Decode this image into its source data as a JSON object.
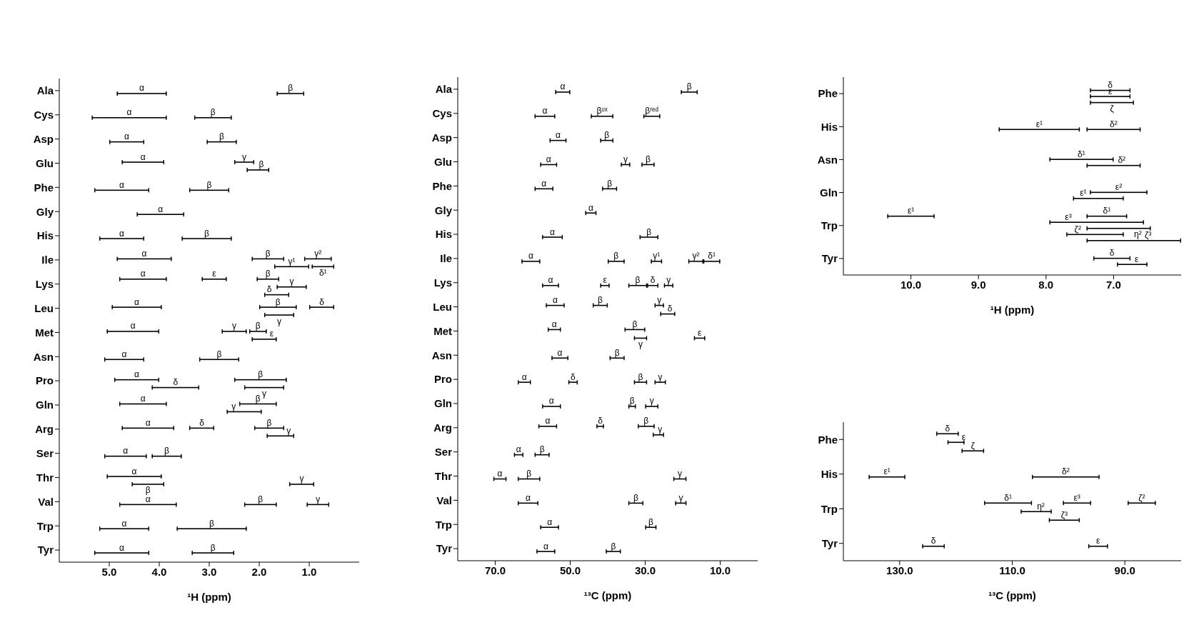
{
  "chart_data": [
    {
      "type": "bar",
      "orientation": "horizontal",
      "xlabel": "¹H (ppm)",
      "categories": [
        "Ala",
        "Cys",
        "Asp",
        "Glu",
        "Phe",
        "Gly",
        "His",
        "Ile",
        "Lys",
        "Leu",
        "Met",
        "Asn",
        "Pro",
        "Gln",
        "Arg",
        "Ser",
        "Thr",
        "Val",
        "Trp",
        "Tyr"
      ],
      "xlim": [
        6,
        0
      ],
      "xticks": [
        {
          "value": 5,
          "label": "5.0"
        },
        {
          "value": 4,
          "label": "4.0"
        },
        {
          "value": 3,
          "label": "3.0"
        },
        {
          "value": 2,
          "label": "2.0"
        },
        {
          "value": 1,
          "label": "1.0"
        }
      ],
      "series": [
        {
          "color": "#000000",
          "base": [
            3.85,
            3.85,
            4.3,
            3.9,
            4.2,
            3.5,
            4.3,
            3.75,
            3.85,
            3.95,
            4.0,
            4.3,
            4.0,
            3.85,
            3.7,
            4.25,
            3.95,
            3.65,
            4.2,
            4.2
          ],
          "values": [
            1.0,
            1.5,
            0.7,
            0.85,
            1.1,
            0.95,
            0.9,
            1.1,
            0.95,
            1.0,
            1.05,
            0.8,
            0.9,
            0.95,
            1.05,
            0.85,
            1.1,
            1.15,
            1.0,
            1.1
          ],
          "value_labels": [
            "α",
            "α",
            "α",
            "α",
            "α",
            "α",
            "α",
            "α",
            "α",
            "α",
            "α",
            "α",
            "α",
            "α",
            "α",
            "α",
            "α",
            "α",
            "α",
            "α"
          ]
        },
        {
          "color": "#000000",
          "base": [
            1.1,
            2.55,
            2.45,
            2.1,
            2.6,
            null,
            2.55,
            1.5,
            2.65,
            0.5,
            2.25,
            2.4,
            1.45,
            1.65,
            2.9,
            3.55,
            3.9,
            1.65,
            2.25,
            2.5
          ],
          "values": [
            0.55,
            0.75,
            0.6,
            0.4,
            0.8,
            null,
            1.0,
            0.65,
            0.5,
            0.5,
            0.5,
            0.8,
            1.05,
            0.75,
            0.5,
            0.6,
            0.65,
            0.65,
            1.4,
            0.85
          ],
          "value_labels": [
            "β",
            "β",
            "β",
            "γ",
            "β",
            null,
            "β",
            "β",
            "ε",
            "δ",
            "γ",
            "β",
            "β",
            "β",
            "δ",
            "β",
            "β",
            "β",
            "β",
            "β"
          ]
        },
        {
          "color": "#000000",
          "base": [
            null,
            null,
            null,
            1.8,
            null,
            null,
            null,
            0.55,
            1.6,
            1.25,
            1.85,
            null,
            3.2,
            1.95,
            1.5,
            null,
            0.9,
            0.6,
            null,
            null
          ],
          "values": [
            null,
            null,
            null,
            0.45,
            null,
            null,
            null,
            0.55,
            0.45,
            0.75,
            0.35,
            null,
            0.95,
            0.7,
            0.6,
            null,
            0.5,
            0.45,
            null,
            null
          ],
          "value_labels": [
            null,
            null,
            null,
            "β",
            null,
            null,
            null,
            "γ²",
            "β",
            "β",
            "β",
            null,
            "δ",
            "γ",
            "β",
            null,
            "γ",
            "γ",
            null,
            null
          ]
        },
        {
          "color": "#000000",
          "base": [
            null,
            null,
            null,
            null,
            null,
            null,
            null,
            1.0,
            1.05,
            1.3,
            1.65,
            null,
            1.5,
            null,
            1.3,
            null,
            null,
            null,
            null,
            null
          ],
          "values": [
            null,
            null,
            null,
            null,
            null,
            null,
            null,
            0.7,
            0.6,
            0.6,
            0.5,
            null,
            0.8,
            null,
            0.55,
            null,
            null,
            null,
            null,
            null
          ],
          "value_labels": [
            null,
            null,
            null,
            null,
            null,
            null,
            null,
            "γ¹",
            "γ",
            "γ",
            "ε",
            null,
            "γ",
            null,
            "γ",
            null,
            null,
            null,
            null,
            null
          ]
        },
        {
          "color": "#000000",
          "base": [
            null,
            null,
            null,
            null,
            null,
            null,
            null,
            0.5,
            1.4,
            null,
            null,
            null,
            null,
            null,
            null,
            null,
            null,
            null,
            null,
            null
          ],
          "values": [
            null,
            null,
            null,
            null,
            null,
            null,
            null,
            0.45,
            0.5,
            null,
            null,
            null,
            null,
            null,
            null,
            null,
            null,
            null,
            null,
            null
          ],
          "value_labels": [
            null,
            null,
            null,
            null,
            null,
            null,
            null,
            "δ¹",
            "δ",
            null,
            null,
            null,
            null,
            null,
            null,
            null,
            null,
            null,
            null,
            null
          ]
        }
      ]
    },
    {
      "type": "bar",
      "orientation": "horizontal",
      "xlabel": "¹³C (ppm)",
      "categories": [
        "Ala",
        "Cys",
        "Asp",
        "Glu",
        "Phe",
        "Gly",
        "His",
        "Ile",
        "Lys",
        "Leu",
        "Met",
        "Asn",
        "Pro",
        "Gln",
        "Arg",
        "Ser",
        "Thr",
        "Val",
        "Trp",
        "Tyr"
      ],
      "xlim": [
        80,
        0
      ],
      "xticks": [
        {
          "value": 70,
          "label": "70.0"
        },
        {
          "value": 50,
          "label": "50.0"
        },
        {
          "value": 30,
          "label": "30.0"
        },
        {
          "value": 10,
          "label": "10.0"
        }
      ],
      "series": [
        {
          "color": "#000000",
          "base": [
            50,
            54,
            51,
            53.5,
            54.5,
            43,
            52,
            58,
            53,
            51.5,
            52.5,
            50.5,
            60.5,
            52.5,
            53.5,
            62.5,
            67,
            58.5,
            53,
            54
          ],
          "values": [
            4,
            5.5,
            4.5,
            4.5,
            5,
            3,
            5.5,
            5,
            4.5,
            5,
            3.5,
            4.5,
            3.5,
            5,
            5,
            2.5,
            3.5,
            5.5,
            5,
            5
          ],
          "value_labels": [
            "α",
            "α",
            "α",
            "α",
            "α",
            "α",
            "α",
            "α",
            "α",
            "α",
            "α",
            "α",
            "α",
            "α",
            "α",
            "α",
            "α",
            "α",
            "α",
            "α"
          ]
        },
        {
          "color": "#000000",
          "base": [
            16,
            38.5,
            38.5,
            34,
            37.5,
            null,
            26.5,
            35.5,
            39.5,
            40,
            30,
            35.5,
            48,
            32.5,
            41,
            55.5,
            58,
            30.5,
            27,
            36.5
          ],
          "values": [
            4.5,
            6,
            3.5,
            2.5,
            4,
            null,
            5,
            4.5,
            2.5,
            4,
            5.5,
            4,
            2.5,
            2,
            2,
            4,
            6,
            4,
            3,
            4
          ],
          "value_labels": [
            "β",
            "βᵒˣ",
            "β",
            "γ",
            "β",
            null,
            "β",
            "β",
            "ε",
            "β",
            "β",
            "β",
            "δ",
            "β",
            "δ",
            "β",
            "β",
            "β",
            "β",
            "β"
          ]
        },
        {
          "color": "#000000",
          "base": [
            null,
            26,
            null,
            27.5,
            null,
            null,
            null,
            25.5,
            29.5,
            25,
            29.5,
            null,
            29.5,
            26.5,
            27.5,
            null,
            19,
            19,
            null,
            null
          ],
          "values": [
            null,
            4.5,
            null,
            3.5,
            null,
            null,
            null,
            3,
            5,
            2.5,
            3.5,
            null,
            3.5,
            3.5,
            4.5,
            null,
            3.5,
            3,
            null,
            null
          ],
          "value_labels": [
            null,
            "βʳᵉᵈ",
            null,
            "β",
            null,
            null,
            null,
            "γ¹",
            "β",
            "γ",
            "γ",
            null,
            "β",
            "γ",
            "β",
            null,
            "γ",
            "γ",
            null,
            null
          ]
        },
        {
          "color": "#000000",
          "base": [
            null,
            null,
            null,
            null,
            null,
            null,
            null,
            14.5,
            26.5,
            22,
            14,
            null,
            24.5,
            null,
            25,
            null,
            null,
            null,
            null,
            null
          ],
          "values": [
            null,
            null,
            null,
            null,
            null,
            null,
            null,
            4,
            3,
            4,
            3,
            null,
            3,
            null,
            3,
            null,
            null,
            null,
            null,
            null
          ],
          "value_labels": [
            null,
            null,
            null,
            null,
            null,
            null,
            null,
            "γ²",
            "δ",
            "δ",
            "ε",
            null,
            "γ",
            null,
            "γ",
            null,
            null,
            null,
            null,
            null
          ]
        },
        {
          "color": "#000000",
          "base": [
            null,
            null,
            null,
            null,
            null,
            null,
            null,
            10,
            22.5,
            null,
            null,
            null,
            null,
            null,
            null,
            null,
            null,
            null,
            null,
            null
          ],
          "values": [
            null,
            null,
            null,
            null,
            null,
            null,
            null,
            4.5,
            2.5,
            null,
            null,
            null,
            null,
            null,
            null,
            null,
            null,
            null,
            null,
            null
          ],
          "value_labels": [
            null,
            null,
            null,
            null,
            null,
            null,
            null,
            "δ¹",
            "γ",
            null,
            null,
            null,
            null,
            null,
            null,
            null,
            null,
            null,
            null,
            null
          ]
        }
      ]
    },
    {
      "type": "bar",
      "orientation": "horizontal",
      "xlabel": "¹H (ppm)",
      "categories": [
        "Phe",
        "His",
        "Asn",
        "Gln",
        "Trp",
        "Tyr"
      ],
      "xlim": [
        11,
        6
      ],
      "xticks": [
        {
          "value": 10,
          "label": "10.0"
        },
        {
          "value": 9,
          "label": "9.0"
        },
        {
          "value": 8,
          "label": "8.0"
        },
        {
          "value": 7,
          "label": "7.0"
        }
      ],
      "series": [
        {
          "color": "#000000",
          "base": [
            6.75,
            7.5,
            7.0,
            6.5,
            9.65,
            6.75
          ],
          "values": [
            0.6,
            1.2,
            0.95,
            0.85,
            0.7,
            0.55
          ],
          "value_labels": [
            "δ",
            "ε¹",
            "δ¹",
            "ε²",
            "ε¹",
            "δ"
          ]
        },
        {
          "color": "#000000",
          "base": [
            6.75,
            6.6,
            6.6,
            6.85,
            6.8,
            6.5
          ],
          "values": [
            0.6,
            0.8,
            0.8,
            0.75,
            0.6,
            0.45
          ],
          "value_labels": [
            "ε",
            "δ²",
            "δ²",
            "ε¹",
            "δ¹",
            "ε"
          ]
        },
        {
          "color": "#000000",
          "base": [
            6.7,
            null,
            null,
            null,
            6.55,
            null
          ],
          "values": [
            0.65,
            null,
            null,
            null,
            1.4,
            null
          ],
          "value_labels": [
            "ζ",
            null,
            null,
            null,
            "ε³",
            null
          ]
        },
        {
          "color": "#000000",
          "base": [
            null,
            null,
            null,
            null,
            6.45,
            null
          ],
          "values": [
            null,
            null,
            null,
            null,
            0.95,
            null
          ],
          "value_labels": [
            null,
            null,
            null,
            null,
            "η²",
            null
          ]
        },
        {
          "color": "#000000",
          "base": [
            null,
            null,
            null,
            null,
            6.85,
            null
          ],
          "values": [
            null,
            null,
            null,
            null,
            0.85,
            null
          ],
          "value_labels": [
            null,
            null,
            null,
            null,
            "ζ²",
            null
          ]
        },
        {
          "color": "#000000",
          "base": [
            null,
            null,
            null,
            null,
            6.0,
            null
          ],
          "values": [
            null,
            null,
            null,
            null,
            1.4,
            null
          ],
          "value_labels": [
            null,
            null,
            null,
            null,
            "ζ³",
            null
          ]
        }
      ]
    },
    {
      "type": "bar",
      "orientation": "horizontal",
      "xlabel": "¹³C (ppm)",
      "categories": [
        "Phe",
        "His",
        "Trp",
        "Tyr"
      ],
      "xlim": [
        140,
        80
      ],
      "xticks": [
        {
          "value": 130,
          "label": "130.0"
        },
        {
          "value": 110,
          "label": "110.0"
        },
        {
          "value": 90,
          "label": "90.0"
        }
      ],
      "series": [
        {
          "color": "#000000",
          "base": [
            119.5,
            129,
            106.5,
            122
          ],
          "values": [
            4,
            6.5,
            8.5,
            4
          ],
          "value_labels": [
            "δ",
            "ε¹",
            "δ¹",
            "δ"
          ]
        },
        {
          "color": "#000000",
          "base": [
            118.5,
            94.5,
            96,
            93
          ],
          "values": [
            3,
            12,
            5,
            3.5
          ],
          "value_labels": [
            "ε",
            "δ²",
            "ε³",
            "ε"
          ]
        },
        {
          "color": "#000000",
          "base": [
            115,
            null,
            84.5,
            null
          ],
          "values": [
            4,
            null,
            5,
            null
          ],
          "value_labels": [
            "ζ",
            null,
            "ζ²",
            null
          ]
        },
        {
          "color": "#000000",
          "base": [
            null,
            null,
            103,
            null
          ],
          "values": [
            null,
            null,
            5.5,
            null
          ],
          "value_labels": [
            null,
            null,
            "η²",
            null
          ]
        },
        {
          "color": "#000000",
          "base": [
            null,
            null,
            98,
            null
          ],
          "values": [
            null,
            null,
            5.5,
            null
          ],
          "value_labels": [
            null,
            null,
            "ζ³",
            null
          ]
        }
      ]
    }
  ]
}
